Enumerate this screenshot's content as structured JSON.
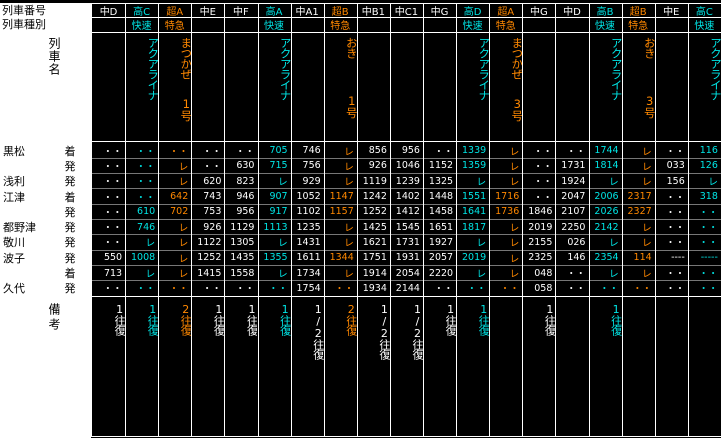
{
  "labels": {
    "train_number": "列車番号",
    "train_type": "列車種別",
    "train_name": "列車名",
    "remarks": "備考"
  },
  "colors": {
    "rapid": "#00e5e5",
    "limited": "#ff8800",
    "local": "#ffffff",
    "label_bg": "#ffffff"
  },
  "stations": [
    {
      "name": "黒松",
      "kind": "着"
    },
    {
      "name": "",
      "kind": "発"
    },
    {
      "name": "浅利",
      "kind": "発"
    },
    {
      "name": "江津",
      "kind": "着"
    },
    {
      "name": "",
      "kind": "発"
    },
    {
      "name": "都野津",
      "kind": "発"
    },
    {
      "name": "敬川",
      "kind": "発"
    },
    {
      "name": "波子",
      "kind": "発"
    },
    {
      "name": "",
      "kind": "着"
    },
    {
      "name": "久代",
      "kind": "発"
    }
  ],
  "trains": [
    {
      "no": "中D",
      "type": "",
      "name": "",
      "cls": "local",
      "times": [
        "・・",
        "・・",
        "・・",
        "・・",
        "・・",
        "・・",
        "・・",
        "550",
        "713",
        "・・"
      ],
      "remark": "1往復"
    },
    {
      "no": "高C",
      "type": "快速",
      "name": "アクアライナ",
      "cls": "rapid",
      "times": [
        "・・",
        "・・",
        "・・",
        "・・",
        "610",
        "746",
        "レ",
        "1008",
        "レ",
        "・・"
      ],
      "remark": "1往復"
    },
    {
      "no": "超A",
      "type": "特急",
      "name": "まつかぜ",
      "num": "1号",
      "cls": "limited",
      "times": [
        "・・",
        "レ",
        "レ",
        "642",
        "702",
        "レ",
        "レ",
        "レ",
        "レ",
        "・・"
      ],
      "remark": "2往復"
    },
    {
      "no": "中E",
      "type": "",
      "name": "",
      "cls": "local",
      "times": [
        "・・",
        "・・",
        "620",
        "743",
        "753",
        "926",
        "1122",
        "1252",
        "1415",
        "・・"
      ],
      "remark": "1往復"
    },
    {
      "no": "中F",
      "type": "",
      "name": "",
      "cls": "local",
      "times": [
        "・・",
        "630",
        "823",
        "946",
        "956",
        "1129",
        "1305",
        "1435",
        "1558",
        "・・"
      ],
      "remark": "1往復"
    },
    {
      "no": "高A",
      "type": "快速",
      "name": "アクアライナ",
      "cls": "rapid",
      "times": [
        "705",
        "715",
        "レ",
        "907",
        "917",
        "1113",
        "レ",
        "1355",
        "レ",
        "・・"
      ],
      "remark": "1往復"
    },
    {
      "no": "中A1",
      "type": "",
      "name": "",
      "cls": "local",
      "times": [
        "746",
        "756",
        "929",
        "1052",
        "1102",
        "1235",
        "1431",
        "1611",
        "1734",
        "1754"
      ],
      "remark": "1/2往復"
    },
    {
      "no": "超B",
      "type": "特急",
      "name": "おき",
      "num": "1号",
      "cls": "limited",
      "times": [
        "レ",
        "レ",
        "レ",
        "1147",
        "1157",
        "レ",
        "レ",
        "1344",
        "レ",
        "・・"
      ],
      "remark": "2往復"
    },
    {
      "no": "中B1",
      "type": "",
      "name": "",
      "cls": "local",
      "times": [
        "856",
        "926",
        "1119",
        "1242",
        "1252",
        "1425",
        "1621",
        "1751",
        "1914",
        "1934"
      ],
      "remark": "1/2往復"
    },
    {
      "no": "中C1",
      "type": "",
      "name": "",
      "cls": "local",
      "times": [
        "956",
        "1046",
        "1239",
        "1402",
        "1412",
        "1545",
        "1731",
        "1931",
        "2054",
        "2144"
      ],
      "remark": "1/2往復"
    },
    {
      "no": "中G",
      "type": "",
      "name": "",
      "cls": "local",
      "times": [
        "・・",
        "1152",
        "1325",
        "1448",
        "1458",
        "1651",
        "1927",
        "2057",
        "2220",
        "・・"
      ],
      "remark": "1往復"
    },
    {
      "no": "高D",
      "type": "快速",
      "name": "アクアライナ",
      "cls": "rapid",
      "times": [
        "1339",
        "1359",
        "レ",
        "1551",
        "1641",
        "1817",
        "レ",
        "2019",
        "レ",
        "・・"
      ],
      "remark": "1往復"
    },
    {
      "no": "超A",
      "type": "特急",
      "name": "まつかぜ",
      "num": "3号",
      "cls": "limited",
      "times": [
        "レ",
        "レ",
        "レ",
        "1716",
        "1736",
        "レ",
        "レ",
        "レ",
        "レ",
        "・・"
      ],
      "remark": ""
    },
    {
      "no": "中G",
      "type": "",
      "name": "",
      "cls": "local",
      "times": [
        "・・",
        "・・",
        "・・",
        "・・",
        "1846",
        "2019",
        "2155",
        "2325",
        "048",
        "058"
      ],
      "remark": "1往復"
    },
    {
      "no": "中D",
      "type": "",
      "name": "",
      "cls": "local",
      "times": [
        "・・",
        "1731",
        "1924",
        "2047",
        "2107",
        "2250",
        "026",
        "146",
        "・・",
        "・・"
      ],
      "remark": ""
    },
    {
      "no": "高B",
      "type": "快速",
      "name": "アクアライナ",
      "cls": "rapid",
      "times": [
        "1744",
        "1814",
        "レ",
        "2006",
        "2026",
        "2142",
        "レ",
        "2354",
        "レ",
        "・・"
      ],
      "remark": "1往復"
    },
    {
      "no": "超B",
      "type": "特急",
      "name": "おき",
      "num": "3号",
      "cls": "limited",
      "times": [
        "レ",
        "レ",
        "レ",
        "2317",
        "2327",
        "レ",
        "レ",
        "114",
        "レ",
        "・・"
      ],
      "remark": ""
    },
    {
      "no": "中E",
      "type": "",
      "name": "",
      "cls": "local",
      "times": [
        "・・",
        "033",
        "156",
        "・・",
        "・・",
        "・・",
        "・・",
        "----",
        "・・",
        "・・"
      ],
      "remark": ""
    },
    {
      "no": "高C",
      "type": "快速",
      "name": "アクアライナ",
      "cls": "rapid",
      "times": [
        "116",
        "126",
        "レ",
        "318",
        "・・",
        "・・",
        "・・",
        "-----",
        "・・",
        "・・"
      ],
      "remark": ""
    }
  ]
}
